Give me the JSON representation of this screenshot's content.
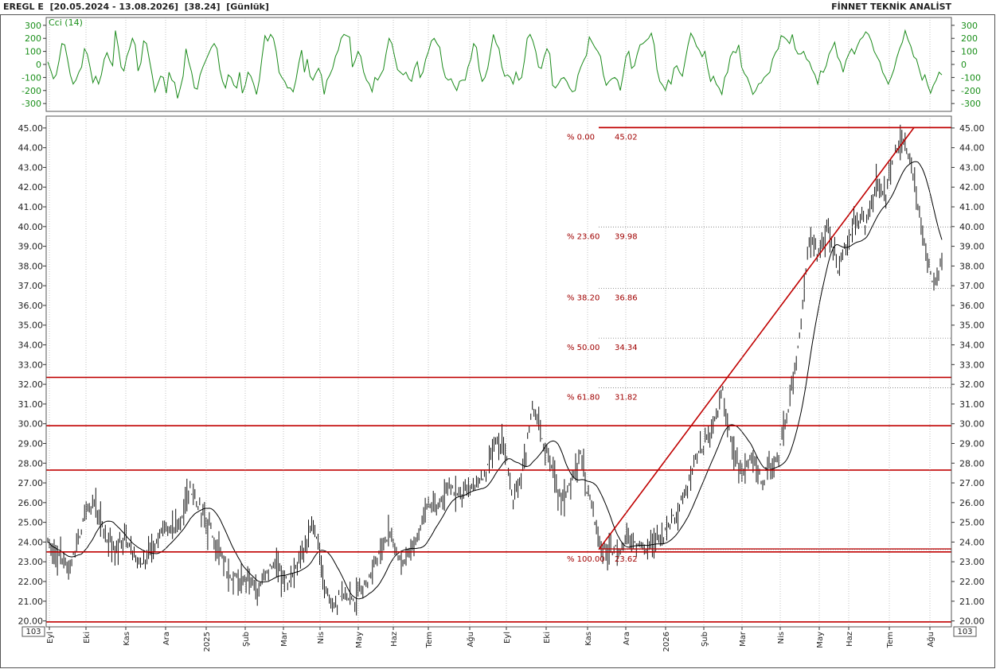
{
  "header": {
    "ticker": "EREGL E",
    "range": "[20.05.2024 - 13.08.2026]",
    "last": "[38.24]",
    "period": "[Günlük]",
    "brand": "FİNNET TEKNİK ANALİST"
  },
  "cci_label": "Cci (14)",
  "unit_label": "10^3",
  "colors": {
    "price": "#111111",
    "ma": "#000000",
    "cci": "#1a8a1a",
    "level": "#c00000",
    "fib": "#a00000",
    "grid": "#999999"
  },
  "chart_data": [
    {
      "type": "line",
      "name": "CCI panel",
      "series": [
        {
          "name": "Cci (14)",
          "values": [
            20,
            -40,
            -110,
            -80,
            30,
            160,
            150,
            40,
            -80,
            -150,
            -120,
            -60,
            -20,
            120,
            80,
            -20,
            -140,
            -90,
            -150,
            -80,
            40,
            90,
            30,
            -10,
            260,
            130,
            -20,
            -50,
            60,
            120,
            200,
            150,
            -50,
            10,
            180,
            160,
            40,
            -80,
            -210,
            -150,
            -90,
            -100,
            -220,
            -60,
            -120,
            -140,
            -260,
            -180,
            -90,
            120,
            20,
            -60,
            -180,
            -190,
            -80,
            -20,
            30,
            80,
            130,
            160,
            120,
            -40,
            -130,
            -180,
            -80,
            -100,
            -160,
            -180,
            -60,
            -220,
            -160,
            -60,
            -90,
            -150,
            -230,
            -120,
            60,
            220,
            180,
            230,
            200,
            100,
            -60,
            -100,
            -130,
            -180,
            -180,
            -210,
            -120,
            10,
            110,
            -60,
            40,
            -90,
            -120,
            -70,
            -30,
            -80,
            -230,
            -120,
            -80,
            -30,
            60,
            110,
            200,
            230,
            220,
            210,
            -20,
            30,
            100,
            60,
            -60,
            -120,
            -150,
            -210,
            -100,
            -120,
            -80,
            -40,
            90,
            200,
            160,
            60,
            -40,
            -60,
            -80,
            -60,
            -110,
            -130,
            -30,
            20,
            -100,
            -60,
            40,
            100,
            180,
            200,
            160,
            130,
            -20,
            -100,
            -120,
            -110,
            -160,
            -200,
            -130,
            -120,
            -120,
            -20,
            40,
            160,
            130,
            -40,
            -130,
            -100,
            -30,
            100,
            230,
            160,
            120,
            -20,
            -90,
            -80,
            -100,
            -150,
            -60,
            -120,
            -100,
            30,
            200,
            230,
            180,
            100,
            -20,
            -30,
            60,
            120,
            80,
            -160,
            -180,
            -150,
            -110,
            -100,
            -130,
            -180,
            -210,
            -200,
            -80,
            -20,
            30,
            70,
            210,
            170,
            130,
            100,
            60,
            -80,
            -160,
            -130,
            -110,
            -100,
            -120,
            -200,
            -80,
            60,
            100,
            -30,
            -10,
            80,
            150,
            160,
            180,
            200,
            240,
            150,
            -40,
            -130,
            -160,
            -200,
            -120,
            -150,
            -30,
            -10,
            -60,
            -90,
            30,
            150,
            240,
            200,
            140,
            110,
            60,
            100,
            -30,
            -130,
            -90,
            -150,
            -180,
            -230,
            -100,
            -60,
            60,
            100,
            90,
            150,
            -20,
            -70,
            -100,
            -160,
            -230,
            -200,
            -150,
            -140,
            -100,
            -80,
            -60,
            40,
            90,
            120,
            220,
            210,
            190,
            160,
            230,
            120,
            80,
            80,
            100,
            40,
            20,
            -40,
            -80,
            -150,
            -50,
            -60,
            -10,
            80,
            120,
            170,
            60,
            20,
            -60,
            30,
            80,
            120,
            80,
            140,
            190,
            210,
            250,
            230,
            180,
            100,
            60,
            20,
            -60,
            -100,
            -150,
            -100,
            -40,
            50,
            120,
            170,
            260,
            190,
            140,
            60,
            40,
            -40,
            -120,
            -80,
            -160,
            -220,
            -160,
            -120,
            -60,
            -80
          ]
        }
      ],
      "ylim": [
        -360,
        360
      ],
      "yticks": [
        300,
        200,
        100,
        0,
        -100,
        -200,
        -300
      ]
    },
    {
      "type": "bar",
      "name": "EREGL price panel",
      "x_label": "",
      "y_label": "",
      "ylim": [
        19.7,
        45.6
      ],
      "yticks": [
        45.0,
        44.0,
        43.0,
        42.0,
        41.0,
        40.0,
        39.0,
        38.0,
        37.0,
        36.0,
        35.0,
        34.0,
        33.0,
        32.0,
        31.0,
        30.0,
        29.0,
        28.0,
        27.0,
        26.0,
        25.0,
        24.0,
        23.0,
        22.0,
        21.0,
        20.0
      ],
      "x_months": [
        "Eyl",
        "Eki",
        "Kas",
        "Ara",
        "2025",
        "Şub",
        "Mar",
        "Nis",
        "May",
        "Haz",
        "Tem",
        "Ağu",
        "Eyl",
        "Eki",
        "Kas",
        "Ara",
        "2026",
        "Şub",
        "Mar",
        "Nis",
        "May",
        "Haz",
        "Tem",
        "Ağu"
      ],
      "price_anchors": [
        24.0,
        23.4,
        22.6,
        23.8,
        25.5,
        26.0,
        24.3,
        23.7,
        24.1,
        23.5,
        22.8,
        23.6,
        24.8,
        24.4,
        25.3,
        26.8,
        25.6,
        24.7,
        23.6,
        22.5,
        22.0,
        22.3,
        21.6,
        22.6,
        22.9,
        22.0,
        22.6,
        23.8,
        25.0,
        21.9,
        20.6,
        21.4,
        20.9,
        21.5,
        22.4,
        23.7,
        24.5,
        23.0,
        23.5,
        24.4,
        26.1,
        25.8,
        26.9,
        26.3,
        26.6,
        26.9,
        27.4,
        29.2,
        28.8,
        26.1,
        27.6,
        31.2,
        29.1,
        27.9,
        26.0,
        27.2,
        28.4,
        26.0,
        23.8,
        23.6,
        23.7,
        24.2,
        24.0,
        23.7,
        24.0,
        24.5,
        25.4,
        26.6,
        28.2,
        29.0,
        29.8,
        31.6,
        28.6,
        27.3,
        28.6,
        27.0,
        27.8,
        28.8,
        31.2,
        34.2,
        39.5,
        38.6,
        40.1,
        37.8,
        39.2,
        40.4,
        40.1,
        42.0,
        41.6,
        43.8,
        44.6,
        42.7,
        39.8,
        37.0,
        38.1
      ],
      "levels": [
        32.35,
        29.9,
        27.65,
        23.5,
        19.95
      ],
      "support_line_top": 23.65,
      "trendline": {
        "from": {
          "month": "Kas",
          "value": 23.62
        },
        "to": {
          "month": "Ağu",
          "value": 45.02
        }
      },
      "fibonacci": [
        {
          "pct": "% 0.00",
          "value": "45.02"
        },
        {
          "pct": "% 23.60",
          "value": "39.98"
        },
        {
          "pct": "% 38.20",
          "value": "36.86"
        },
        {
          "pct": "% 50.00",
          "value": "34.34"
        },
        {
          "pct": "% 61.80",
          "value": "31.82"
        },
        {
          "pct": "% 100.00",
          "value": "23.62"
        }
      ]
    }
  ]
}
